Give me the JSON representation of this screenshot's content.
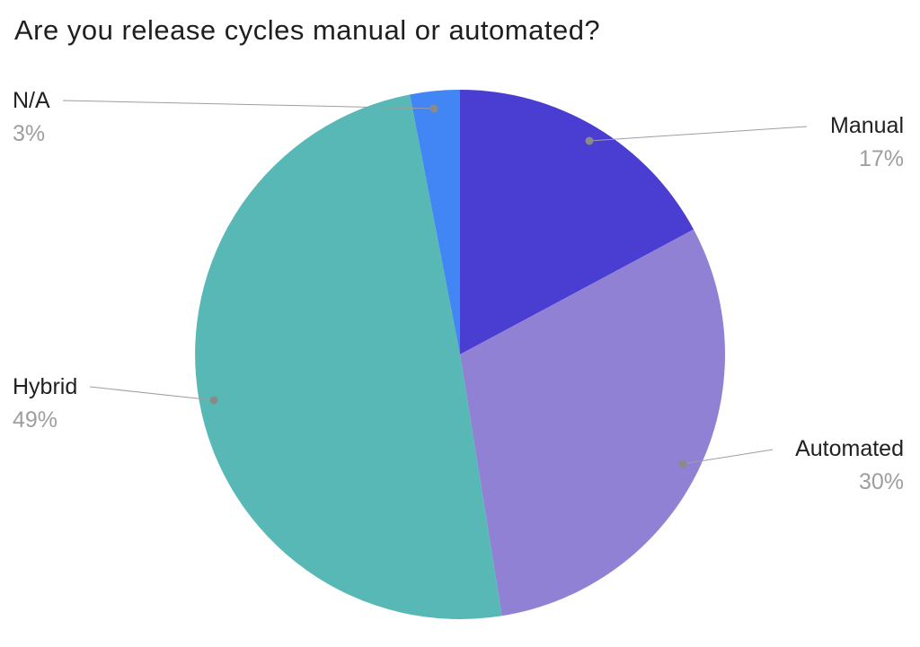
{
  "chart_data": {
    "type": "pie",
    "title": "Are you release cycles manual or automated?",
    "start_angle_deg": 0,
    "direction": "clockwise",
    "legend_position": "callout-labels",
    "slices": [
      {
        "label": "Manual",
        "value": 17,
        "percent_label": "17%",
        "color": "#4a3ed2"
      },
      {
        "label": "Automated",
        "value": 30,
        "percent_label": "30%",
        "color": "#9181d4"
      },
      {
        "label": "Hybrid",
        "value": 49,
        "percent_label": "49%",
        "color": "#58b8b6"
      },
      {
        "label": "N/A",
        "value": 3,
        "percent_label": "3%",
        "color": "#4285f4"
      }
    ],
    "label_text_color": "#212121",
    "percent_text_color": "#9e9e9e",
    "leader_line_color": "#9e9e9e",
    "background_color": "#ffffff"
  }
}
